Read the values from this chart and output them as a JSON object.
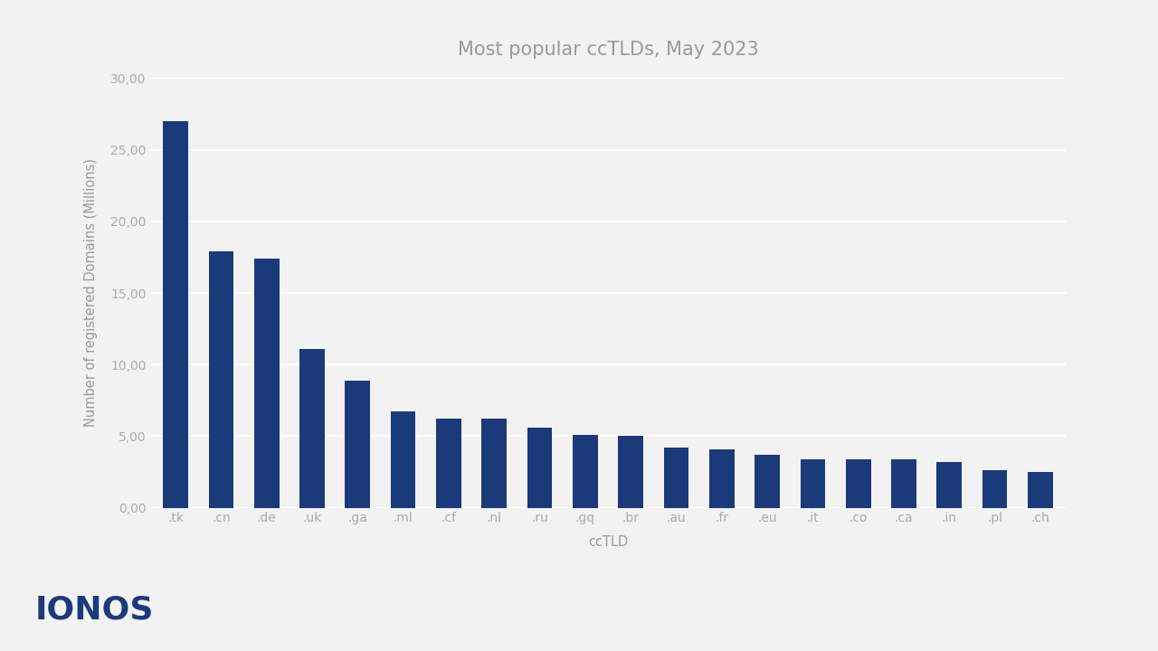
{
  "title": "Most popular ccTLDs, May 2023",
  "xlabel": "ccTLD",
  "ylabel": "Number of registered Domains (Millions)",
  "categories": [
    ".tk",
    ".cn",
    ".de",
    ".uk",
    ".ga",
    ".ml",
    ".cf",
    ".nl",
    ".ru",
    ".gq",
    ".br",
    ".au",
    ".fr",
    ".eu",
    ".it",
    ".co",
    ".ca",
    ".in",
    ".pl",
    ".ch"
  ],
  "values": [
    27.0,
    17.9,
    17.4,
    11.1,
    8.9,
    6.7,
    6.2,
    6.2,
    5.6,
    5.1,
    5.05,
    4.2,
    4.1,
    3.7,
    3.4,
    3.4,
    3.4,
    3.2,
    2.6,
    2.5
  ],
  "bar_color": "#1a3a7a",
  "background_color": "#f2f2f2",
  "ylim": [
    0,
    30
  ],
  "ytick_labels": [
    "0,00",
    "5,00",
    "10,00",
    "15,00",
    "20,00",
    "25,00",
    "30,00"
  ],
  "grid_color": "#ffffff",
  "title_fontsize": 15,
  "axis_label_fontsize": 10.5,
  "tick_fontsize": 10,
  "logo_text": "IONOS",
  "logo_color": "#1a3a7a",
  "logo_fontsize": 26
}
